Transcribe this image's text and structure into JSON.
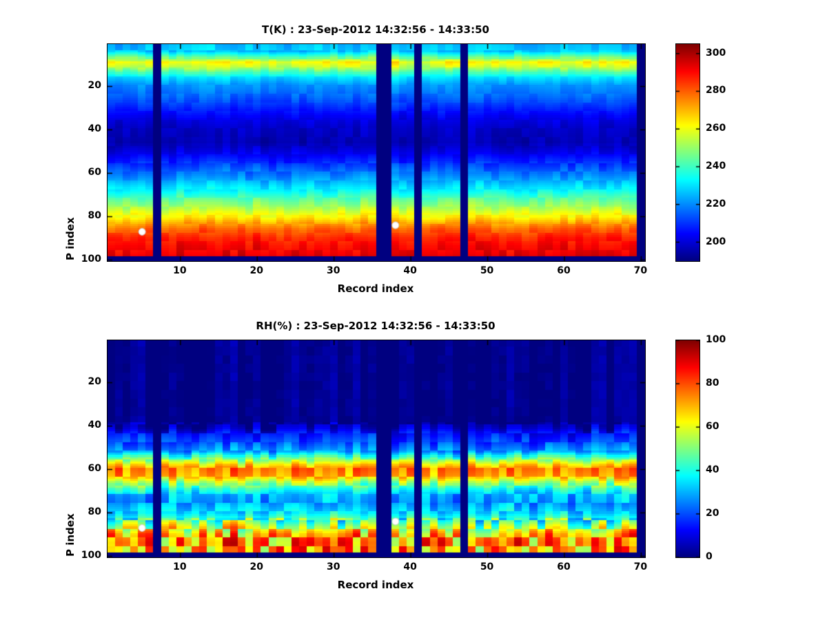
{
  "figure": {
    "background": "#ffffff",
    "marker_color": "#ffffff"
  },
  "chart_data": [
    {
      "type": "heatmap",
      "title": "T(K) : 23-Sep-2012 14:32:56 - 14:33:50",
      "xlabel": "Record index",
      "ylabel": "P index",
      "colormap": "jet",
      "grid": false,
      "legend": "colorbar-right",
      "x_range": [
        1,
        70
      ],
      "y_range": [
        1,
        100
      ],
      "y_direction": "down",
      "xticks": [
        10,
        20,
        30,
        40,
        50,
        60,
        70
      ],
      "yticks": [
        20,
        40,
        60,
        80,
        100
      ],
      "clim": [
        190,
        305
      ],
      "colorbar_ticks": [
        200,
        220,
        240,
        260,
        280,
        300
      ],
      "profile": [
        [
          1,
          226
        ],
        [
          4,
          228
        ],
        [
          7,
          247
        ],
        [
          9,
          262
        ],
        [
          11,
          256
        ],
        [
          13,
          245
        ],
        [
          16,
          230
        ],
        [
          20,
          221
        ],
        [
          25,
          216
        ],
        [
          30,
          209
        ],
        [
          35,
          202
        ],
        [
          40,
          198
        ],
        [
          46,
          196
        ],
        [
          52,
          204
        ],
        [
          58,
          214
        ],
        [
          63,
          223
        ],
        [
          68,
          233
        ],
        [
          72,
          243
        ],
        [
          76,
          253
        ],
        [
          80,
          263
        ],
        [
          83,
          272
        ],
        [
          86,
          280
        ],
        [
          90,
          287
        ],
        [
          94,
          291
        ],
        [
          98,
          294
        ]
      ],
      "missing_columns": [
        7,
        36,
        37,
        41,
        47,
        70
      ],
      "missing_rows": [
        99,
        100
      ],
      "markers": [
        {
          "x": 5,
          "y": 87
        },
        {
          "x": 38,
          "y": 84
        }
      ],
      "noise": {
        "col_amp": 2,
        "row_amps": [
          [
            14,
            5
          ],
          [
            55,
            2.5
          ],
          [
            101,
            4
          ]
        ]
      }
    },
    {
      "type": "heatmap",
      "title": "RH(%) : 23-Sep-2012 14:32:56 - 14:33:50",
      "xlabel": "Record index",
      "ylabel": "P index",
      "colormap": "jet",
      "grid": false,
      "legend": "colorbar-right",
      "x_range": [
        1,
        70
      ],
      "y_range": [
        1,
        100
      ],
      "y_direction": "down",
      "xticks": [
        10,
        20,
        30,
        40,
        50,
        60,
        70
      ],
      "yticks": [
        20,
        40,
        60,
        80,
        100
      ],
      "clim": [
        0,
        100
      ],
      "colorbar_ticks": [
        0,
        20,
        40,
        60,
        80,
        100
      ],
      "profile": [
        [
          1,
          1
        ],
        [
          38,
          1
        ],
        [
          41,
          6
        ],
        [
          44,
          14
        ],
        [
          48,
          20
        ],
        [
          52,
          28
        ],
        [
          55,
          48
        ],
        [
          58,
          66
        ],
        [
          60,
          74
        ],
        [
          63,
          71
        ],
        [
          66,
          55
        ],
        [
          69,
          40
        ],
        [
          72,
          31
        ],
        [
          76,
          28
        ],
        [
          80,
          34
        ],
        [
          84,
          47
        ],
        [
          87,
          59
        ],
        [
          90,
          70
        ],
        [
          94,
          74
        ],
        [
          98,
          72
        ],
        [
          100,
          70
        ]
      ],
      "missing_columns": [
        7,
        36,
        37,
        41,
        47,
        70
      ],
      "missing_rows": [
        99,
        100
      ],
      "markers": [
        {
          "x": 5,
          "y": 87
        },
        {
          "x": 38,
          "y": 84
        }
      ],
      "noise": {
        "col_amp": 4,
        "row_amps": [
          [
            39,
            1.5
          ],
          [
            53,
            7
          ],
          [
            69,
            9
          ],
          [
            83,
            8
          ],
          [
            101,
            20
          ]
        ]
      }
    }
  ]
}
